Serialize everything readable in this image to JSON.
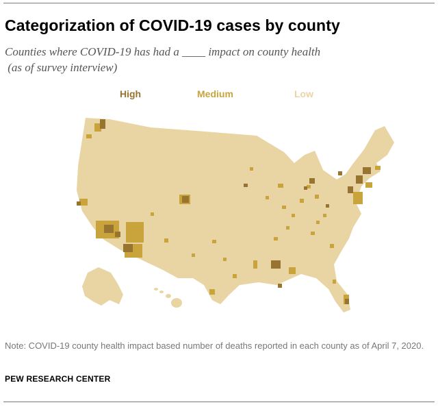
{
  "title": "Categorization of COVID-19 cases by county",
  "subtitle": "Counties where COVID-19 has had a ____ impact on county health\n (as of survey interview)",
  "legend": {
    "high": "High",
    "medium": "Medium",
    "low": "Low"
  },
  "colors": {
    "high": "#97742f",
    "medium": "#c9a33c",
    "low": "#e8d5a3",
    "rule": "#7a7a7a"
  },
  "map": {
    "regions": [
      "Contiguous United States",
      "Alaska",
      "Hawaii"
    ],
    "categories": [
      "High",
      "Medium",
      "Low"
    ]
  },
  "note": "Note:  COVID-19 county health impact based number of deaths reported in each county as of April 7, 2020.",
  "source": "PEW RESEARCH CENTER"
}
